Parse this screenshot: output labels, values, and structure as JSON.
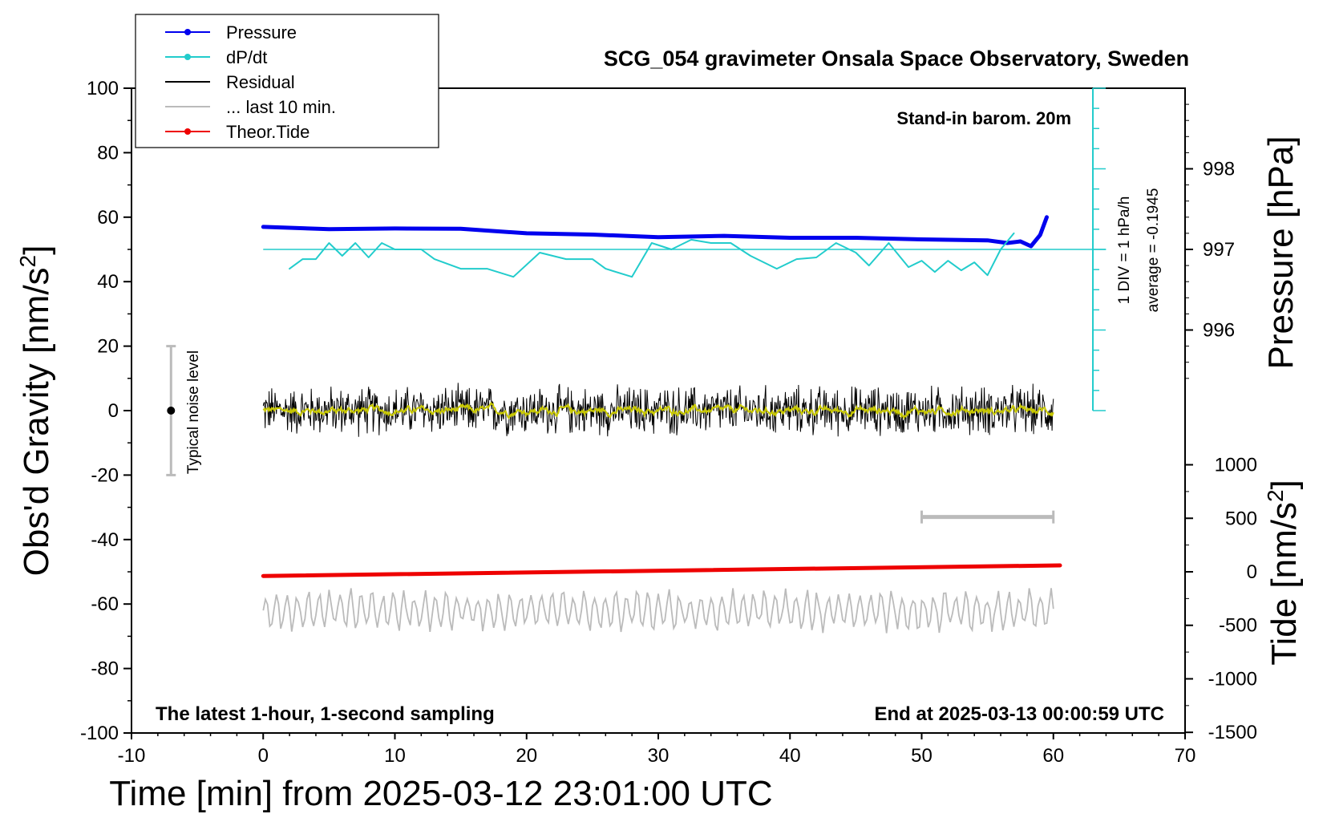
{
  "chart_data": {
    "type": "line",
    "title": "SCG_054 gravimeter Onsala Space Observatory, Sweden",
    "xlabel": "Time [min] from 2025-03-12 23:01:00 UTC",
    "ylabel_left": "Obs'd Gravity [nm/s",
    "ylabel_left_sup": "2",
    "ylabel_left_end": "]",
    "ylabel_right_top": "Pressure [hPa]",
    "ylabel_right_bottom": "Tide [nm/s",
    "ylabel_right_bottom_sup": "2",
    "ylabel_right_bottom_end": "]",
    "xlim": [
      -10,
      70
    ],
    "ylim": [
      -100,
      100
    ],
    "x_ticks": [
      "-10",
      "0",
      "10",
      "20",
      "30",
      "40",
      "50",
      "60",
      "70"
    ],
    "y_ticks": [
      "100",
      "80",
      "60",
      "40",
      "20",
      "0",
      "-20",
      "-40",
      "-60",
      "-80",
      "-100"
    ],
    "pressure_ticks": [
      "998",
      "997",
      "996"
    ],
    "pressure_values": [
      998,
      997,
      996
    ],
    "tide_ticks": [
      "1000",
      "500",
      "0",
      "-500",
      "-1000",
      "-1500"
    ],
    "tide_values": [
      1000,
      500,
      0,
      -500,
      -1000,
      -1500
    ],
    "annotations": {
      "stand_in": "Stand-in barom. 20m",
      "latest": "The latest 1-hour, 1-second sampling",
      "end_at": "End at 2025-03-13 00:00:59 UTC",
      "div_label": "1 DIV = 1 hPa/h",
      "average_label": "average = -0.1945",
      "noise_label": "Typical noise level"
    },
    "legend": [
      {
        "label": "Pressure",
        "color": "#0000ee",
        "marker": true
      },
      {
        "label": "dP/dt",
        "color": "#22cccc",
        "marker": true
      },
      {
        "label": "Residual",
        "color": "#000000",
        "marker": false
      },
      {
        "label": "... last 10 min.",
        "color": "#bbbbbb",
        "marker": false
      },
      {
        "label": "Theor.Tide",
        "color": "#ee0000",
        "marker": true
      }
    ],
    "series": [
      {
        "name": "Pressure",
        "color": "#0000ee",
        "x": [
          0,
          5,
          10,
          15,
          20,
          25,
          30,
          35,
          40,
          45,
          50,
          55,
          56.5,
          57.5,
          58.3,
          59,
          59.5
        ],
        "y": [
          57,
          56.3,
          56.5,
          56.4,
          55,
          54.6,
          53.8,
          54.2,
          53.6,
          53.6,
          53.1,
          52.8,
          52,
          52.5,
          51,
          54.5,
          60
        ]
      },
      {
        "name": "dP/dt",
        "color": "#22cccc",
        "x": [
          2,
          3,
          4,
          5,
          6,
          7,
          8,
          9,
          10,
          12,
          13,
          15,
          17,
          19,
          21,
          23,
          25,
          26,
          28,
          29.5,
          31,
          32.5,
          34,
          35.5,
          37,
          39,
          40.5,
          42,
          43.5,
          45,
          46,
          47.5,
          49,
          50,
          51,
          52,
          53,
          54,
          55,
          56,
          57
        ],
        "y": [
          44,
          47,
          47,
          52,
          48,
          52,
          47.5,
          52,
          50,
          50,
          47,
          44,
          44,
          41.5,
          49,
          47,
          47,
          44,
          41.5,
          52,
          50,
          53,
          52,
          52,
          48,
          44,
          47,
          47.5,
          52,
          49,
          45,
          52,
          44.5,
          46.5,
          43,
          46.5,
          43.5,
          46,
          42,
          50,
          55
        ]
      },
      {
        "name": "Theor.Tide",
        "color": "#ee0000",
        "x": [
          0,
          60.5
        ],
        "y": [
          -51.3,
          -48
        ]
      }
    ],
    "residual": {
      "name": "Residual",
      "mean": 0,
      "amplitude": 6,
      "x_range": [
        0,
        60
      ]
    },
    "residual_smooth": {
      "color": "#c8c800"
    },
    "last10": {
      "name": "... last 10 min.",
      "color": "#bbbbbb",
      "center": -62,
      "amplitude": 6,
      "x_range": [
        0,
        60
      ]
    },
    "scale_bar": {
      "x": [
        50,
        60
      ],
      "y": -33
    },
    "noise_bar": {
      "x": -7,
      "y_range": [
        -20,
        20
      ],
      "y_center": 0
    },
    "dpdt_axis": {
      "x": 63,
      "y_range": [
        0,
        100
      ],
      "ref_y": 50
    }
  }
}
